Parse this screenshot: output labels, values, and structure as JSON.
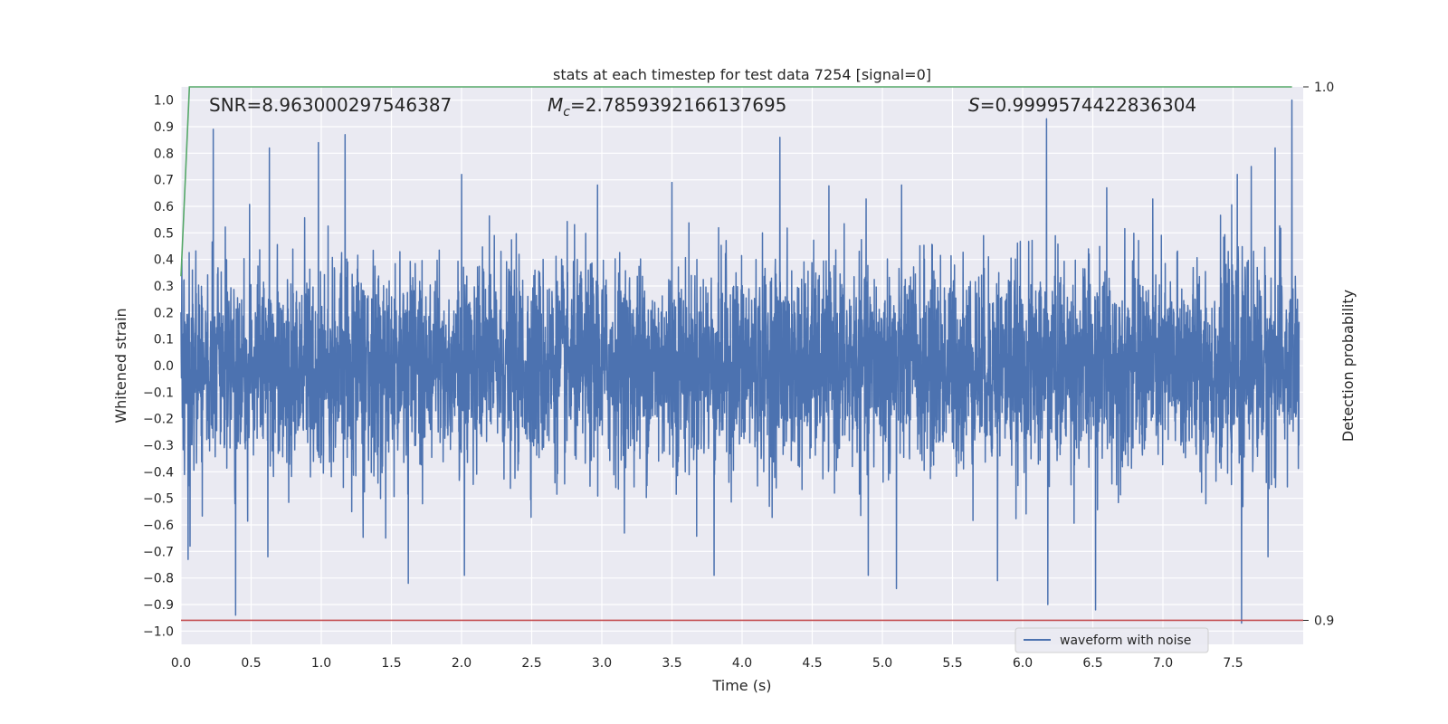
{
  "chart_data": {
    "type": "line",
    "title": "stats at each timestep for test data 7254 [signal=0]",
    "xlabel": "Time (s)",
    "ylabel": "Whitened strain",
    "y2label": "Detection probability",
    "xlim": [
      0,
      8
    ],
    "ylim": [
      -1.05,
      1.05
    ],
    "y2lim": [
      0.8955,
      1.0
    ],
    "x_ticks": [
      "0.0",
      "0.5",
      "1.0",
      "1.5",
      "2.0",
      "2.5",
      "3.0",
      "3.5",
      "4.0",
      "4.5",
      "5.0",
      "5.5",
      "6.0",
      "6.5",
      "7.0",
      "7.5"
    ],
    "y_ticks": [
      "1.0",
      "0.9",
      "0.8",
      "0.7",
      "0.6",
      "0.5",
      "0.4",
      "0.3",
      "0.2",
      "0.1",
      "0.0",
      "-0.1",
      "-0.2",
      "-0.3",
      "-0.4",
      "-0.5",
      "-0.6",
      "-0.7",
      "-0.8",
      "-0.9",
      "-1.0"
    ],
    "y2_ticks": [
      "1.0",
      "0.9"
    ],
    "grid": true,
    "legend_position": "bottom-right",
    "annotations": {
      "snr": "SNR=8.963000297546387",
      "mc_symbol": "M",
      "mc_sub": "c",
      "mc_value": "=2.7859392166137695",
      "s_symbol": "S",
      "s_value": "=0.9999574422836304"
    },
    "series": [
      {
        "name": "waveform with noise",
        "axis": "left",
        "color": "#4c72b0",
        "description_values": "whitened strain noise, amplitude mostly within ±0.4, spikes up to 1.0 and down to -0.97",
        "spikes_positive": [
          [
            0.23,
            0.89
          ],
          [
            0.63,
            0.82
          ],
          [
            0.98,
            0.84
          ],
          [
            1.17,
            0.87
          ],
          [
            2.0,
            0.72
          ],
          [
            2.97,
            0.68
          ],
          [
            3.5,
            0.69
          ],
          [
            4.27,
            0.86
          ],
          [
            4.9,
            0.71
          ],
          [
            6.17,
            0.93
          ],
          [
            6.6,
            0.67
          ],
          [
            7.53,
            0.72
          ],
          [
            7.63,
            0.75
          ],
          [
            7.8,
            0.82
          ],
          [
            7.92,
            1.0
          ]
        ],
        "spikes_negative": [
          [
            0.05,
            -0.73
          ],
          [
            0.39,
            -0.94
          ],
          [
            0.62,
            -0.72
          ],
          [
            1.62,
            -0.82
          ],
          [
            2.02,
            -0.79
          ],
          [
            3.8,
            -0.79
          ],
          [
            4.9,
            -0.79
          ],
          [
            5.1,
            -0.84
          ],
          [
            5.82,
            -0.81
          ],
          [
            6.18,
            -0.9
          ],
          [
            6.52,
            -0.92
          ],
          [
            7.56,
            -0.97
          ],
          [
            7.75,
            -0.72
          ]
        ]
      },
      {
        "axis": "right",
        "color": "#55a868",
        "x": [
          0,
          0.06,
          0.08,
          7.92
        ],
        "values": [
          0.9645,
          1.0,
          1.0,
          1.0
        ]
      },
      {
        "axis": "right",
        "color": "#c44e52",
        "x": [
          0,
          8
        ],
        "values": [
          0.9,
          0.9
        ]
      }
    ]
  }
}
